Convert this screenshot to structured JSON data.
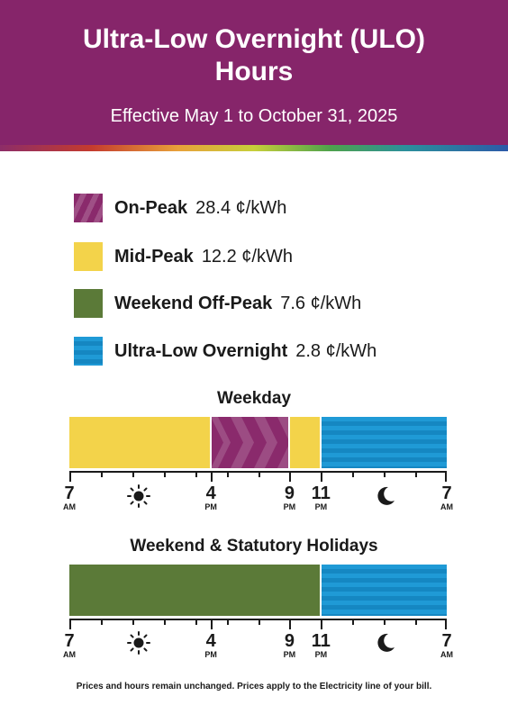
{
  "header": {
    "title_line1": "Ultra-Low Overnight (ULO)",
    "title_line2": "Hours",
    "subtitle": "Effective May 1 to October 31, 2025"
  },
  "legend": [
    {
      "name": "On-Peak",
      "price": "28.4 ¢/kWh",
      "color": "#8a2a6c"
    },
    {
      "name": "Mid-Peak",
      "price": "12.2 ¢/kWh",
      "color": "#f3d34a"
    },
    {
      "name": "Weekend Off-Peak",
      "price": "7.6 ¢/kWh",
      "color": "#5b7a38"
    },
    {
      "name": "Ultra-Low Overnight",
      "price": "2.8 ¢/kWh",
      "color": "#1f9ad6"
    }
  ],
  "weekday": {
    "title": "Weekday",
    "periods": [
      {
        "period": "Mid-Peak",
        "from": "7 AM",
        "to": "4 PM"
      },
      {
        "period": "On-Peak",
        "from": "4 PM",
        "to": "9 PM"
      },
      {
        "period": "Mid-Peak",
        "from": "9 PM",
        "to": "11 PM"
      },
      {
        "period": "Ultra-Low Overnight",
        "from": "11 PM",
        "to": "7 AM"
      }
    ]
  },
  "weekend": {
    "title": "Weekend & Statutory Holidays",
    "periods": [
      {
        "period": "Weekend Off-Peak",
        "from": "7 AM",
        "to": "11 PM"
      },
      {
        "period": "Ultra-Low Overnight",
        "from": "11 PM",
        "to": "7 AM"
      }
    ]
  },
  "axis_labels": [
    {
      "num": "7",
      "suffix": "AM"
    },
    {
      "num": "4",
      "suffix": "PM"
    },
    {
      "num": "9",
      "suffix": "PM"
    },
    {
      "num": "11",
      "suffix": "PM"
    },
    {
      "num": "7",
      "suffix": "AM"
    }
  ],
  "icons": [
    "sun-icon",
    "moon-icon"
  ],
  "footnote": "Prices and hours remain unchanged. Prices apply to the Electricity line of your bill."
}
